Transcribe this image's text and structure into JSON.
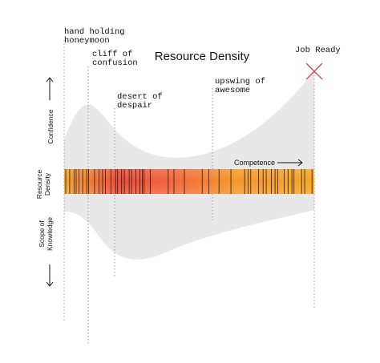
{
  "title": "Resource Density",
  "stages": [
    {
      "lines": [
        "hand holding",
        "honeymoon"
      ]
    },
    {
      "lines": [
        "cliff of",
        "confusion"
      ]
    },
    {
      "lines": [
        "desert of",
        "despair"
      ]
    },
    {
      "lines": [
        "upswing of",
        "awesome"
      ]
    },
    {
      "lines": [
        "Job Ready"
      ]
    }
  ],
  "axis_labels": {
    "confidence": "Confidence",
    "resource_density": [
      "Resource",
      "Density"
    ],
    "scope": [
      "Scope of",
      "Knowledge"
    ],
    "competence": "Competence"
  }
}
